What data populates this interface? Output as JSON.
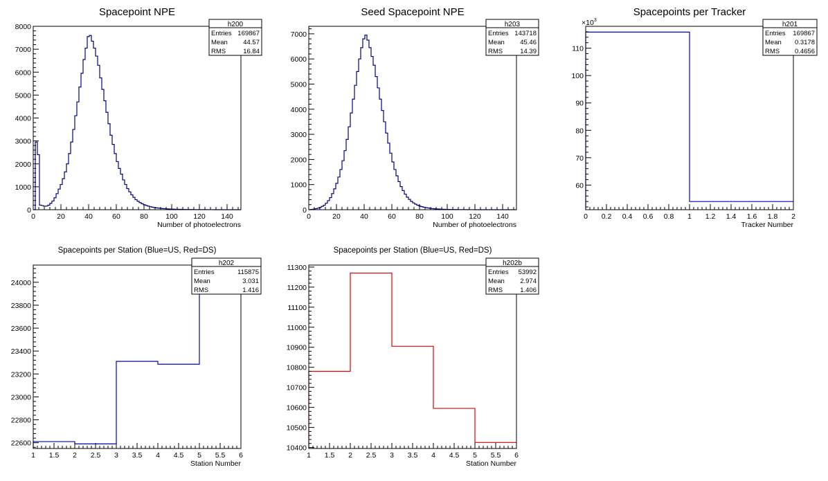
{
  "chart_data": [
    {
      "id": "h200",
      "type": "histogram",
      "title": "Spacepoint NPE",
      "title_style": "big",
      "xlabel": "Number of photoelectrons",
      "ylabel": "",
      "xlim": [
        0,
        150
      ],
      "ylim": [
        0,
        8000
      ],
      "xticks": [
        0,
        20,
        40,
        60,
        80,
        100,
        120,
        140
      ],
      "yticks": [
        0,
        1000,
        2000,
        3000,
        4000,
        5000,
        6000,
        7000,
        8000
      ],
      "ytick_labels": [
        "0",
        "1000",
        "2000",
        "3000",
        "4000",
        "5000",
        "6000",
        "7000",
        "8000"
      ],
      "ymultiplier": "",
      "line_color": "#000080",
      "bin_width": 1.5,
      "bin_start": 0,
      "values": [
        0,
        2950,
        2400,
        200,
        180,
        150,
        160,
        200,
        280,
        380,
        520,
        700,
        900,
        1100,
        1350,
        1650,
        2000,
        2450,
        2950,
        3500,
        4100,
        4700,
        5350,
        5950,
        6550,
        7050,
        7550,
        7600,
        7350,
        7050,
        6700,
        6300,
        5750,
        5250,
        4750,
        4250,
        3750,
        3250,
        2850,
        2450,
        2100,
        1800,
        1550,
        1300,
        1100,
        920,
        780,
        650,
        540,
        440,
        370,
        310,
        260,
        220,
        185,
        155,
        130,
        110,
        95,
        80,
        68,
        58,
        50,
        43,
        37,
        32,
        28,
        24,
        21,
        18,
        16,
        14,
        12,
        10,
        9,
        8,
        7,
        6,
        5,
        5,
        4,
        4,
        3,
        3,
        2,
        2,
        2,
        1,
        1,
        1,
        0,
        0,
        0,
        0,
        0,
        0,
        0,
        0,
        0,
        0
      ],
      "stats": {
        "name": "h200",
        "rows": [
          [
            "Entries",
            "169867"
          ],
          [
            "Mean",
            "44.57"
          ],
          [
            "RMS",
            "16.84"
          ]
        ]
      }
    },
    {
      "id": "h203",
      "type": "histogram",
      "title": "Seed Spacepoint NPE",
      "title_style": "big",
      "xlabel": "Number of photoelectrons",
      "ylabel": "",
      "xlim": [
        0,
        150
      ],
      "ylim": [
        0,
        7300
      ],
      "xticks": [
        0,
        20,
        40,
        60,
        80,
        100,
        120,
        140
      ],
      "yticks": [
        0,
        1000,
        2000,
        3000,
        4000,
        5000,
        6000,
        7000
      ],
      "ytick_labels": [
        "0",
        "1000",
        "2000",
        "3000",
        "4000",
        "5000",
        "6000",
        "7000"
      ],
      "ymultiplier": "",
      "line_color": "#000080",
      "bin_width": 1.5,
      "bin_start": 0,
      "values": [
        0,
        10,
        20,
        40,
        60,
        90,
        130,
        180,
        260,
        360,
        480,
        640,
        830,
        1050,
        1300,
        1600,
        1950,
        2350,
        2800,
        3300,
        3850,
        4400,
        4950,
        5500,
        6000,
        6450,
        6800,
        6950,
        6750,
        6450,
        6100,
        5750,
        5300,
        4850,
        4400,
        3950,
        3500,
        3050,
        2650,
        2250,
        1900,
        1600,
        1350,
        1120,
        920,
        760,
        620,
        500,
        410,
        330,
        270,
        220,
        180,
        145,
        120,
        100,
        82,
        68,
        56,
        46,
        38,
        32,
        27,
        22,
        18,
        15,
        13,
        11,
        9,
        8,
        7,
        6,
        5,
        4,
        4,
        3,
        3,
        2,
        2,
        2,
        1,
        1,
        1,
        1,
        0,
        0,
        0,
        0,
        0,
        0,
        0,
        0,
        0,
        0,
        0,
        0,
        0,
        0,
        0,
        0
      ],
      "stats": {
        "name": "h203",
        "rows": [
          [
            "Entries",
            "143718"
          ],
          [
            "Mean",
            "45.46"
          ],
          [
            "RMS",
            "14.39"
          ]
        ]
      }
    },
    {
      "id": "h201",
      "type": "histogram",
      "title": "Spacepoints per Tracker",
      "title_style": "big",
      "xlabel": "Tracker Number",
      "ylabel": "",
      "xlim": [
        0,
        2
      ],
      "ylim": [
        51,
        118
      ],
      "xticks": [
        0,
        0.2,
        0.4,
        0.6,
        0.8,
        1,
        1.2,
        1.4,
        1.6,
        1.8,
        2
      ],
      "xtick_labels": [
        "0",
        "0.2",
        "0.4",
        "0.6",
        "0.8",
        "1",
        "1.2",
        "1.4",
        "1.6",
        "1.8",
        "2"
      ],
      "yticks": [
        60,
        70,
        80,
        90,
        100,
        110
      ],
      "ytick_labels": [
        "60",
        "70",
        "80",
        "90",
        "100",
        "110"
      ],
      "ymultiplier": "×10",
      "ymultiplier_exp": "3",
      "line_color": "#0000cc",
      "bin_width": 1,
      "bin_start": 0,
      "values": [
        115.875,
        53.992
      ],
      "stats": {
        "name": "h201",
        "rows": [
          [
            "Entries",
            "169867"
          ],
          [
            "Mean",
            "0.3178"
          ],
          [
            "RMS",
            "0.4656"
          ]
        ]
      }
    },
    {
      "id": "h202",
      "type": "histogram",
      "title": "Spacepoints per Station (Blue=US, Red=DS)",
      "title_style": "small",
      "xlabel": "Station Number",
      "ylabel": "",
      "xlim": [
        1,
        6
      ],
      "ylim": [
        22550,
        24150
      ],
      "xticks": [
        1,
        1.5,
        2,
        2.5,
        3,
        3.5,
        4,
        4.5,
        5,
        5.5,
        6
      ],
      "xtick_labels": [
        "1",
        "1.5",
        "2",
        "2.5",
        "3",
        "3.5",
        "4",
        "4.5",
        "5",
        "5.5",
        "6"
      ],
      "yticks": [
        22600,
        22800,
        23000,
        23200,
        23400,
        23600,
        23800,
        24000
      ],
      "ytick_labels": [
        "22600",
        "22800",
        "23000",
        "23200",
        "23400",
        "23600",
        "23800",
        "24000"
      ],
      "ymultiplier": "",
      "line_color": "#0000cc",
      "bin_width": 1,
      "bin_start": 1,
      "values": [
        22610,
        22590,
        23310,
        23285,
        24070
      ],
      "stats": {
        "name": "h202",
        "rows": [
          [
            "Entries",
            "115875"
          ],
          [
            "Mean",
            "3.031"
          ],
          [
            "RMS",
            "1.416"
          ]
        ]
      }
    },
    {
      "id": "h202b",
      "type": "histogram",
      "title": "Spacepoints per Station (Blue=US, Red=DS)",
      "title_style": "small",
      "xlabel": "Station Number",
      "ylabel": "",
      "xlim": [
        1,
        6
      ],
      "ylim": [
        10395,
        11310
      ],
      "xticks": [
        1,
        1.5,
        2,
        2.5,
        3,
        3.5,
        4,
        4.5,
        5,
        5.5,
        6
      ],
      "xtick_labels": [
        "1",
        "1.5",
        "2",
        "2.5",
        "3",
        "3.5",
        "4",
        "4.5",
        "5",
        "5.5",
        "6"
      ],
      "yticks": [
        10400,
        10500,
        10600,
        10700,
        10800,
        10900,
        11000,
        11100,
        11200,
        11300
      ],
      "ytick_labels": [
        "10400",
        "10500",
        "10600",
        "10700",
        "10800",
        "10900",
        "11000",
        "11100",
        "11200",
        "11300"
      ],
      "ymultiplier": "",
      "line_color": "#dd0000",
      "bin_width": 1,
      "bin_start": 1,
      "values": [
        10780,
        11270,
        10905,
        10595,
        10425
      ],
      "stats": {
        "name": "h202b",
        "rows": [
          [
            "Entries",
            "53992"
          ],
          [
            "Mean",
            "2.974"
          ],
          [
            "RMS",
            "1.406"
          ]
        ]
      }
    }
  ]
}
